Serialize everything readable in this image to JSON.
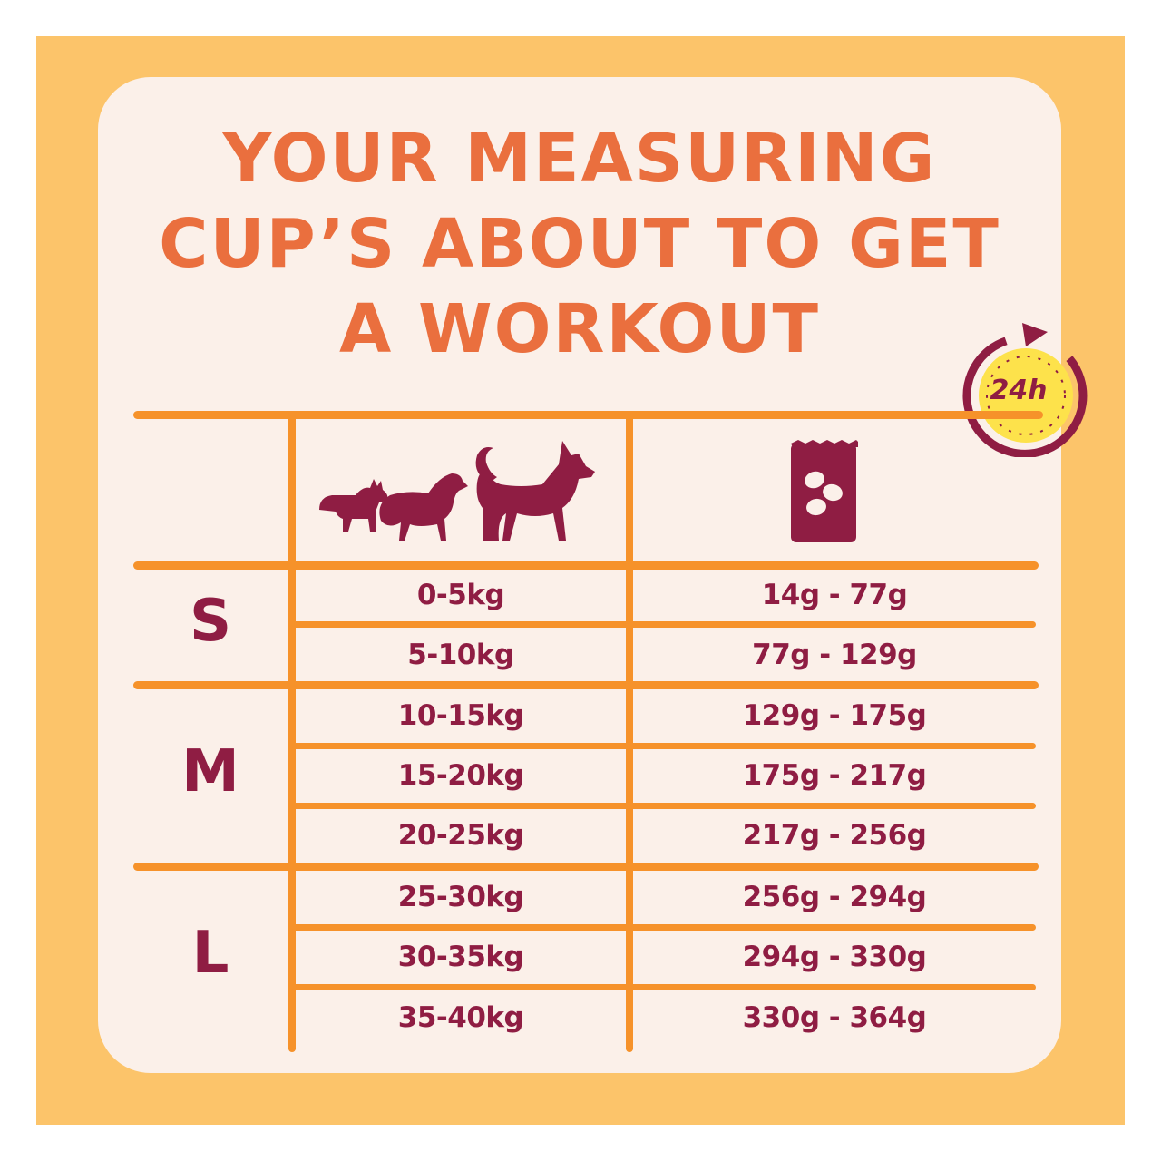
{
  "title": {
    "line1": "YOUR MEASURING",
    "line2": "CUP’S ABOUT TO GET",
    "line3": "A WORKOUT"
  },
  "badge": {
    "label": "24h",
    "icon": "clock-24h-icon"
  },
  "table": {
    "header_icons": [
      "dogs-sizes-icon",
      "food-bag-icon"
    ],
    "groups": [
      {
        "label": "S",
        "rows": [
          {
            "weight": "0-5kg",
            "portion": "14g - 77g"
          },
          {
            "weight": "5-10kg",
            "portion": "77g - 129g"
          }
        ]
      },
      {
        "label": "M",
        "rows": [
          {
            "weight": "10-15kg",
            "portion": "129g - 175g"
          },
          {
            "weight": "15-20kg",
            "portion": "175g - 217g"
          },
          {
            "weight": "20-25kg",
            "portion": "217g - 256g"
          }
        ]
      },
      {
        "label": "L",
        "rows": [
          {
            "weight": "25-30kg",
            "portion": "256g - 294g"
          },
          {
            "weight": "30-35kg",
            "portion": "294g - 330g"
          },
          {
            "weight": "35-40kg",
            "portion": "330g - 364g"
          }
        ]
      }
    ]
  },
  "colors": {
    "frame": "#fcc46a",
    "card": "#fbf0e9",
    "title": "#ea6f3e",
    "lines": "#f6922a",
    "text": "#8f1d43",
    "badge_fill": "#fde24b"
  }
}
